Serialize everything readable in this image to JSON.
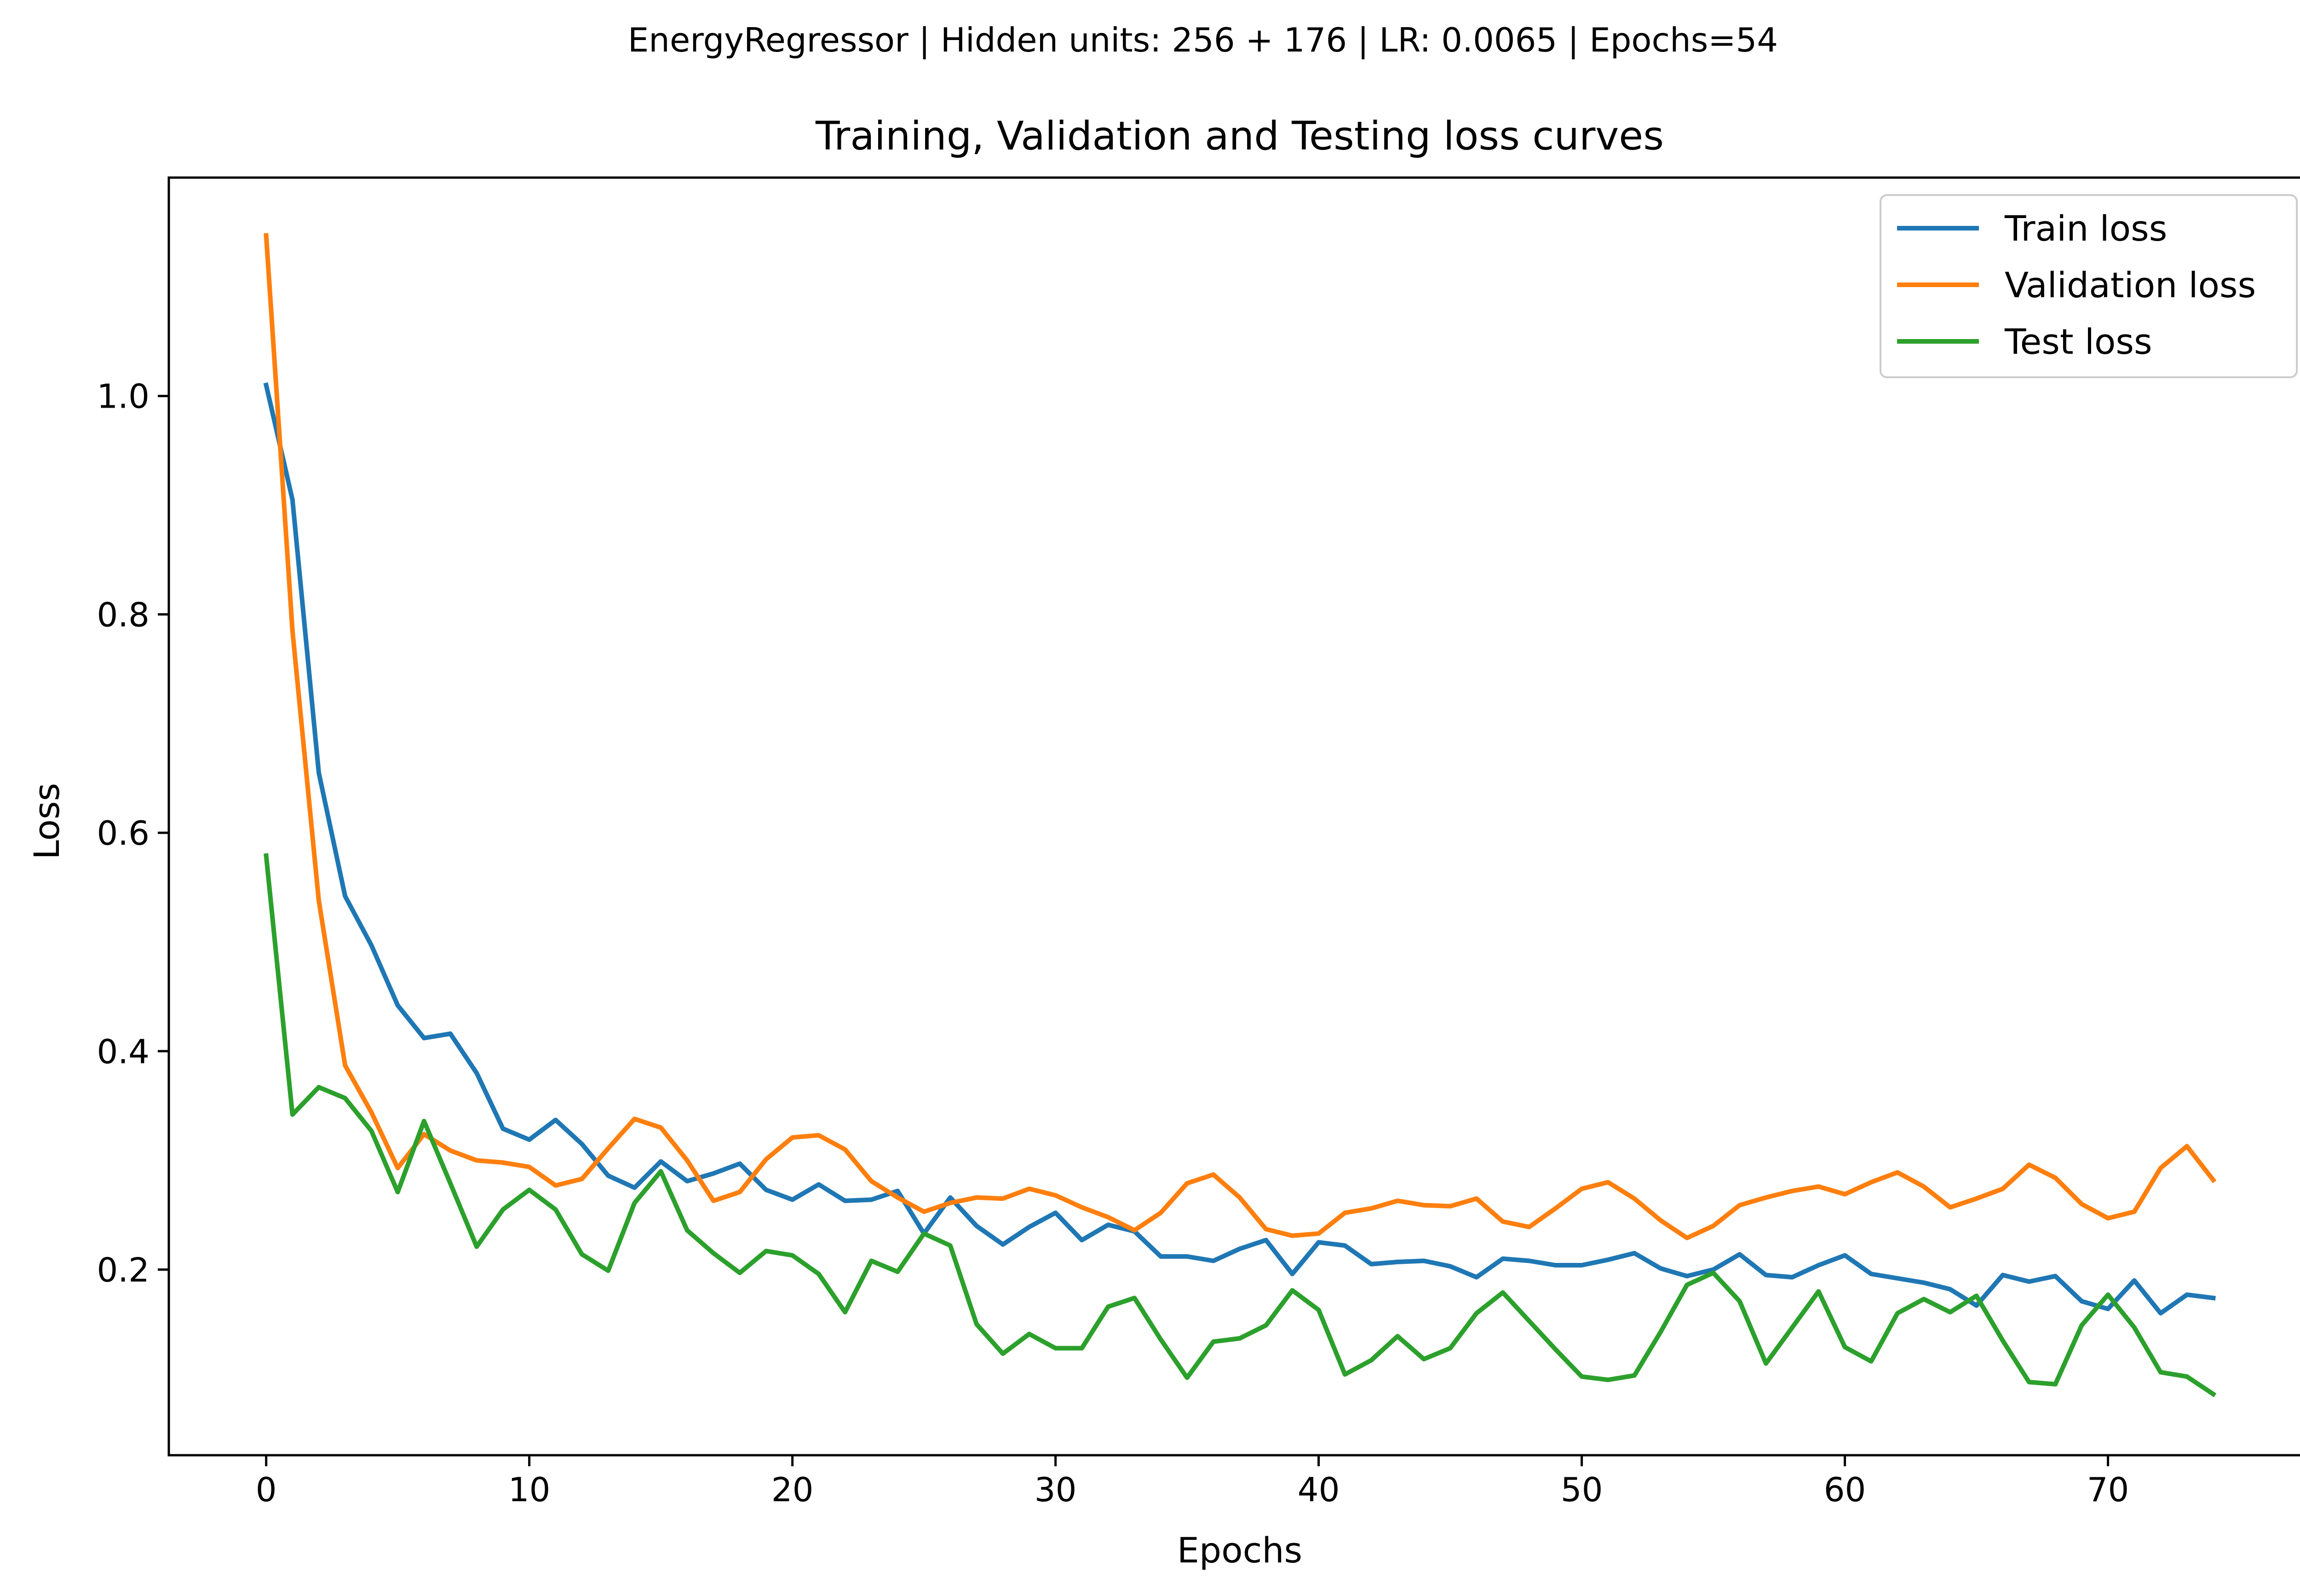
{
  "chart_data": {
    "type": "line",
    "suptitle": "EnergyRegressor | Hidden units: 256 + 176 | LR: 0.0065 | Epochs=54",
    "title": "Training, Validation and Testing loss curves",
    "xlabel": "Epochs",
    "ylabel": "Loss",
    "xlim": [
      -3.7,
      77.7
    ],
    "ylim": [
      0.03,
      1.2
    ],
    "xticks": [
      0,
      10,
      20,
      30,
      40,
      50,
      60,
      70
    ],
    "xtick_labels": [
      "0",
      "10",
      "20",
      "30",
      "40",
      "50",
      "60",
      "70"
    ],
    "yticks": [
      0.2,
      0.4,
      0.6,
      0.8,
      1.0
    ],
    "ytick_labels": [
      "0.2",
      "0.4",
      "0.6",
      "0.8",
      "1.0"
    ],
    "grid": false,
    "legend_position": "top-right",
    "x": [
      0,
      1,
      2,
      3,
      4,
      5,
      6,
      7,
      8,
      9,
      10,
      11,
      12,
      13,
      14,
      15,
      16,
      17,
      18,
      19,
      20,
      21,
      22,
      23,
      24,
      25,
      26,
      27,
      28,
      29,
      30,
      31,
      32,
      33,
      34,
      35,
      36,
      37,
      38,
      39,
      40,
      41,
      42,
      43,
      44,
      45,
      46,
      47,
      48,
      49,
      50,
      51,
      52,
      53,
      54,
      55,
      56,
      57,
      58,
      59,
      60,
      61,
      62,
      63,
      64,
      65,
      66,
      67,
      68,
      69,
      70,
      71,
      72,
      73,
      74
    ],
    "series": [
      {
        "name": "Train loss",
        "color": "#1f77b4",
        "values": [
          1.01,
          0.905,
          0.655,
          0.542,
          0.497,
          0.442,
          0.412,
          0.416,
          0.38,
          0.329,
          0.319,
          0.337,
          0.315,
          0.286,
          0.275,
          0.299,
          0.281,
          0.288,
          0.297,
          0.273,
          0.264,
          0.278,
          0.263,
          0.264,
          0.272,
          0.233,
          0.266,
          0.24,
          0.223,
          0.239,
          0.252,
          0.227,
          0.241,
          0.235,
          0.212,
          0.212,
          0.208,
          0.219,
          0.227,
          0.196,
          0.225,
          0.222,
          0.205,
          0.207,
          0.208,
          0.203,
          0.193,
          0.21,
          0.208,
          0.204,
          0.204,
          0.209,
          0.215,
          0.201,
          0.194,
          0.2,
          0.214,
          0.195,
          0.193,
          0.204,
          0.213,
          0.196,
          0.192,
          0.188,
          0.182,
          0.167,
          0.195,
          0.189,
          0.194,
          0.171,
          0.164,
          0.19,
          0.16,
          0.177,
          0.174
        ]
      },
      {
        "name": "Validation loss",
        "color": "#ff7f0e",
        "values": [
          1.147,
          0.785,
          0.538,
          0.387,
          0.344,
          0.293,
          0.324,
          0.309,
          0.3,
          0.298,
          0.294,
          0.277,
          0.283,
          0.311,
          0.338,
          0.33,
          0.3,
          0.263,
          0.271,
          0.301,
          0.321,
          0.323,
          0.31,
          0.281,
          0.266,
          0.253,
          0.261,
          0.266,
          0.265,
          0.274,
          0.268,
          0.257,
          0.248,
          0.236,
          0.252,
          0.279,
          0.287,
          0.266,
          0.237,
          0.231,
          0.233,
          0.252,
          0.256,
          0.263,
          0.259,
          0.258,
          0.265,
          0.244,
          0.239,
          0.256,
          0.274,
          0.28,
          0.265,
          0.245,
          0.229,
          0.24,
          0.259,
          0.266,
          0.272,
          0.276,
          0.269,
          0.28,
          0.289,
          0.276,
          0.257,
          0.265,
          0.274,
          0.296,
          0.284,
          0.26,
          0.247,
          0.253,
          0.293,
          0.313,
          0.282
        ]
      },
      {
        "name": "Test loss",
        "color": "#2ca02c",
        "values": [
          0.579,
          0.342,
          0.367,
          0.357,
          0.327,
          0.271,
          0.336,
          0.279,
          0.221,
          0.255,
          0.273,
          0.255,
          0.214,
          0.199,
          0.261,
          0.29,
          0.236,
          0.215,
          0.197,
          0.217,
          0.213,
          0.196,
          0.161,
          0.208,
          0.198,
          0.233,
          0.222,
          0.15,
          0.123,
          0.141,
          0.128,
          0.128,
          0.166,
          0.174,
          0.136,
          0.101,
          0.134,
          0.137,
          0.149,
          0.181,
          0.163,
          0.104,
          0.117,
          0.139,
          0.118,
          0.128,
          0.16,
          0.179,
          0.153,
          0.127,
          0.102,
          0.099,
          0.103,
          0.143,
          0.186,
          0.197,
          0.171,
          0.114,
          0.147,
          0.18,
          0.129,
          0.116,
          0.16,
          0.173,
          0.161,
          0.176,
          0.135,
          0.097,
          0.095,
          0.149,
          0.177,
          0.147,
          0.106,
          0.102,
          0.086
        ]
      }
    ]
  }
}
